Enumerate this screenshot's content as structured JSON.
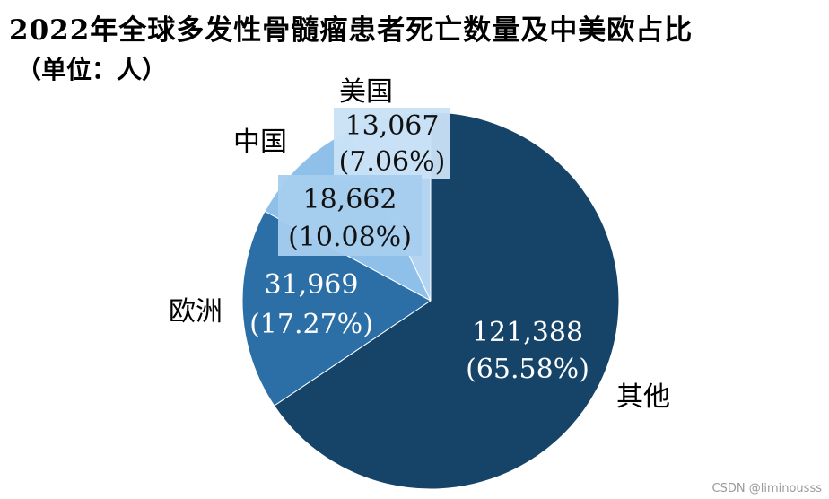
{
  "chart_data": {
    "type": "pie",
    "title": "2022年全球多发性骨髓瘤患者死亡数量及中美欧占比",
    "subtitle": "（单位：人）",
    "categories": [
      "美国",
      "中国",
      "欧洲",
      "其他"
    ],
    "values": [
      13067,
      18662,
      31969,
      121388
    ],
    "value_labels": [
      "13,067",
      "18,662",
      "31,969",
      "121,388"
    ],
    "percent_labels": [
      "(7.06%)",
      "(10.08%)",
      "(17.27%)",
      "(65.58%)"
    ],
    "colors": [
      "#b3d5f1",
      "#8fc0ea",
      "#2c6fa6",
      "#164468"
    ]
  },
  "watermark": "CSDN @liminousss"
}
